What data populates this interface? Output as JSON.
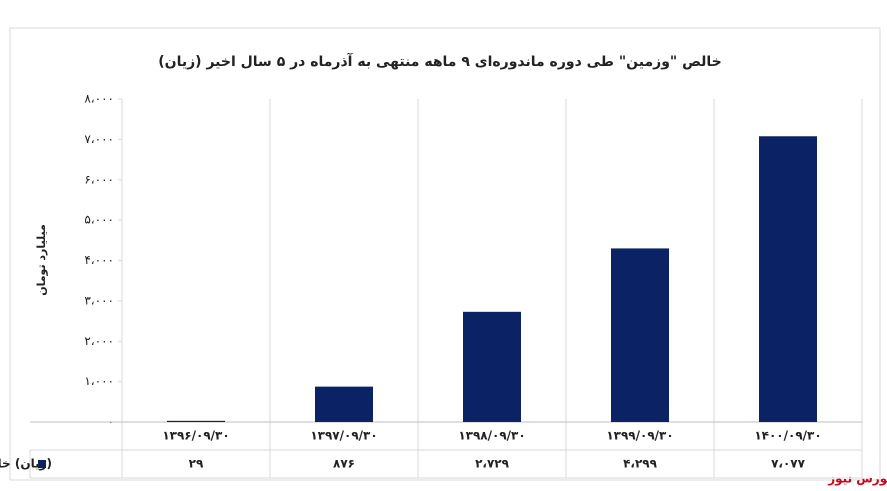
{
  "chart_data": {
    "type": "bar",
    "title": "(زیان) خالص \"وزمین\" طی دوره ماندوره‌ای ۹ ماهه منتهی به آذرماه در ۵ سال اخیر",
    "y_label": "میلیارد تومان",
    "source": "بورس نیوز",
    "categories": [
      "۱۳۹۶/۰۹/۳۰",
      "۱۳۹۷/۰۹/۳۰",
      "۱۳۹۸/۰۹/۳۰",
      "۱۳۹۹/۰۹/۳۰",
      "۱۴۰۰/۰۹/۳۰"
    ],
    "series": [
      {
        "name": "(زیان) خالص",
        "color": "#0b2264",
        "values": [
          29,
          876,
          2729,
          4299,
          7077
        ],
        "value_labels": [
          "۲۹",
          "۸۷۶",
          "۲،۷۲۹",
          "۴،۲۹۹",
          "۷،۰۷۷"
        ]
      }
    ],
    "ylim": [
      0,
      8000
    ],
    "yticks": [
      {
        "value": 0,
        "label": "۰"
      },
      {
        "value": 1000,
        "label": "۱،۰۰۰"
      },
      {
        "value": 2000,
        "label": "۲،۰۰۰"
      },
      {
        "value": 3000,
        "label": "۳،۰۰۰"
      },
      {
        "value": 4000,
        "label": "۴،۰۰۰"
      },
      {
        "value": 5000,
        "label": "۵،۰۰۰"
      },
      {
        "value": 6000,
        "label": "۶،۰۰۰"
      },
      {
        "value": 7000,
        "label": "۷،۰۰۰"
      },
      {
        "value": 8000,
        "label": "۸،۰۰۰"
      }
    ],
    "grid": false
  }
}
